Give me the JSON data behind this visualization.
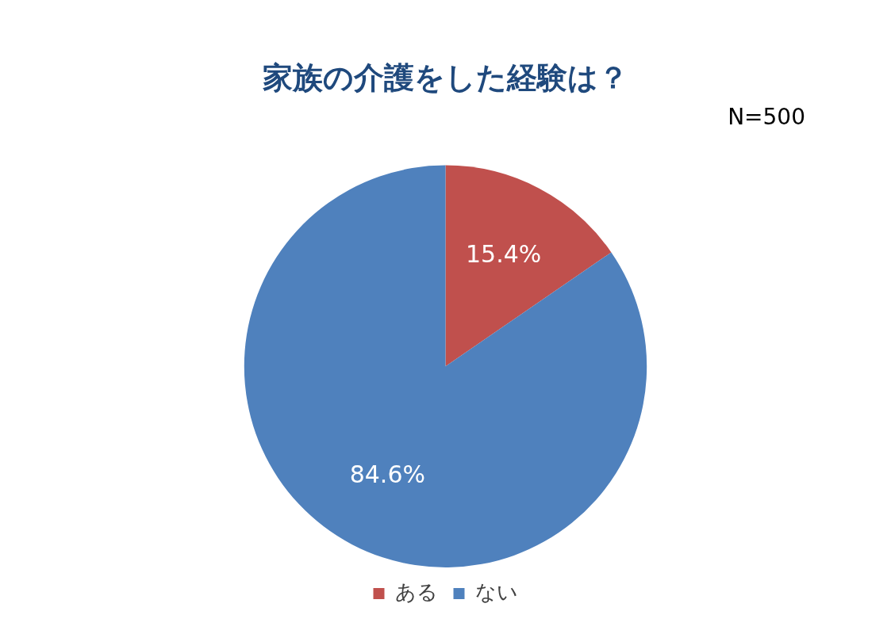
{
  "chart_data": {
    "type": "pie",
    "title": "家族の介護をした経験は？",
    "annotations": [
      "N=500"
    ],
    "categories": [
      "ある",
      "ない"
    ],
    "values": [
      15.4,
      84.6
    ],
    "colors": [
      "#c0504d",
      "#4f81bd"
    ],
    "value_labels": [
      "15.4%",
      "84.6%"
    ],
    "legend": "bottom"
  }
}
